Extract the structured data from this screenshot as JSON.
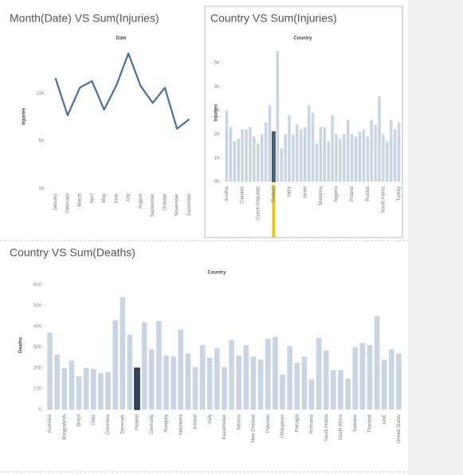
{
  "chart_data": [
    {
      "type": "line",
      "title": "Month(Date) VS Sum(Injuries)",
      "x_label": "Date",
      "y_label": "Injuries",
      "categories": [
        "January",
        "February",
        "March",
        "April",
        "May",
        "June",
        "July",
        "August",
        "September",
        "October",
        "November",
        "December"
      ],
      "values": [
        11600,
        7700,
        10600,
        11300,
        8300,
        10800,
        14200,
        10800,
        9000,
        10600,
        6300,
        7300
      ],
      "color": "#4a6f9c",
      "ylim": [
        0,
        15200
      ],
      "yticks": [
        {
          "value": 0,
          "label": "0K"
        },
        {
          "value": 5000,
          "label": "5K"
        },
        {
          "value": 10000,
          "label": "10K"
        }
      ],
      "grid": false
    },
    {
      "type": "bar",
      "title": "Country VS Sum(Injuries)",
      "x_label": "Country",
      "y_label": "Injuries",
      "categories": [
        "Austria",
        null,
        null,
        null,
        "Canada",
        null,
        null,
        null,
        "Czech Republic",
        null,
        null,
        null,
        "Finland",
        null,
        null,
        null,
        "India",
        null,
        null,
        null,
        "Israel",
        null,
        null,
        null,
        "Malaysia",
        null,
        null,
        null,
        "Nigeria",
        null,
        null,
        null,
        "Poland",
        null,
        null,
        null,
        "Russia",
        null,
        null,
        null,
        "South Korea",
        null,
        null,
        null,
        "Turkey"
      ],
      "values": [
        3000,
        2300,
        1700,
        1800,
        2200,
        2200,
        2300,
        1900,
        1600,
        2000,
        2500,
        3200,
        2100,
        5500,
        1400,
        2000,
        2800,
        2000,
        2400,
        2200,
        2300,
        3200,
        2900,
        1600,
        2300,
        2300,
        1700,
        2800,
        2000,
        1800,
        2000,
        2600,
        2000,
        1900,
        2100,
        2200,
        1900,
        2600,
        2400,
        3600,
        2000,
        1700,
        2600,
        2200,
        2500
      ],
      "color": "#c9d5e3",
      "highlight": {
        "category": "Finland",
        "color": "#4b6a8f",
        "label_color": "#f2c314"
      },
      "ylim": [
        0,
        5800
      ],
      "yticks": [
        {
          "value": 0,
          "label": "0K"
        },
        {
          "value": 1000,
          "label": "1K"
        },
        {
          "value": 2000,
          "label": "2K"
        },
        {
          "value": 3000,
          "label": "3K"
        },
        {
          "value": 4000,
          "label": "4K"
        },
        {
          "value": 5000,
          "label": "5K"
        }
      ],
      "grid": false
    },
    {
      "type": "bar",
      "title": "Country VS Sum(Deaths)",
      "x_label": "Country",
      "y_label": "Deaths",
      "categories": [
        "Australia",
        null,
        "Bangladesh",
        null,
        "Brazil",
        null,
        "Chile",
        null,
        "Colombia",
        null,
        "Denmark",
        null,
        "Finland",
        null,
        "Germany",
        null,
        "Hungary",
        null,
        "Indonesia",
        null,
        "Ireland",
        null,
        "Italy",
        null,
        "Kazakhstan",
        null,
        "Mexico",
        null,
        "New Zealand",
        null,
        "Pakistan",
        null,
        "Philippines",
        null,
        "Portugal",
        null,
        "Romania",
        null,
        "Saudi Arabia",
        null,
        "South Africa",
        null,
        "Sweden",
        null,
        "Thailand",
        null,
        "UAE",
        null,
        "United States"
      ],
      "values": [
        370,
        265,
        200,
        235,
        160,
        200,
        195,
        175,
        180,
        430,
        540,
        360,
        200,
        420,
        290,
        425,
        260,
        255,
        385,
        270,
        205,
        310,
        250,
        295,
        205,
        335,
        260,
        310,
        255,
        240,
        340,
        350,
        170,
        305,
        225,
        255,
        145,
        345,
        285,
        190,
        190,
        150,
        300,
        320,
        310,
        450,
        240,
        290,
        270
      ],
      "color": "#c9d5e3",
      "highlight": {
        "category": "Finland",
        "color": "#2e4460"
      },
      "ylim": [
        0,
        620
      ],
      "yticks": [
        0,
        100,
        200,
        300,
        400,
        500,
        600
      ],
      "grid": false
    }
  ]
}
